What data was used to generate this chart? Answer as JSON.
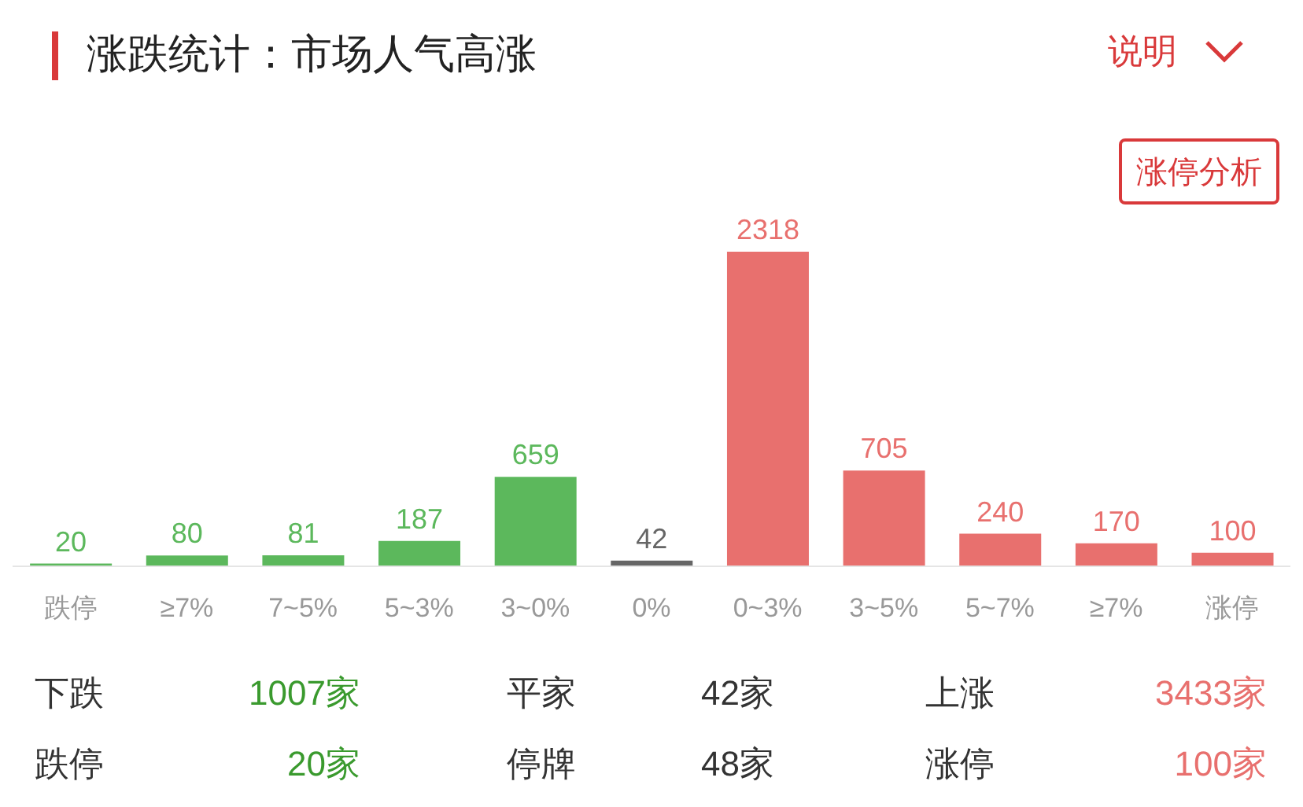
{
  "chart_data": {
    "type": "bar",
    "title": "涨跌统计：市场人气高涨",
    "categories": [
      "跌停",
      "≥7%",
      "7~5%",
      "5~3%",
      "3~0%",
      "0%",
      "0~3%",
      "3~5%",
      "5~7%",
      "≥7%",
      "涨停"
    ],
    "values": [
      20,
      80,
      81,
      187,
      659,
      42,
      2318,
      705,
      240,
      170,
      100
    ],
    "colors": [
      "#5cb85c",
      "#5cb85c",
      "#5cb85c",
      "#5cb85c",
      "#5cb85c",
      "#666666",
      "#e8706e",
      "#e8706e",
      "#e8706e",
      "#e8706e",
      "#e8706e"
    ],
    "data_labels": true,
    "annotations": [
      "说明",
      "涨停分析",
      "下跌",
      "1007家",
      "平家",
      "42家",
      "上涨",
      "3433家",
      "跌停",
      "20家",
      "停牌",
      "48家",
      "涨停",
      "100家"
    ]
  }
}
